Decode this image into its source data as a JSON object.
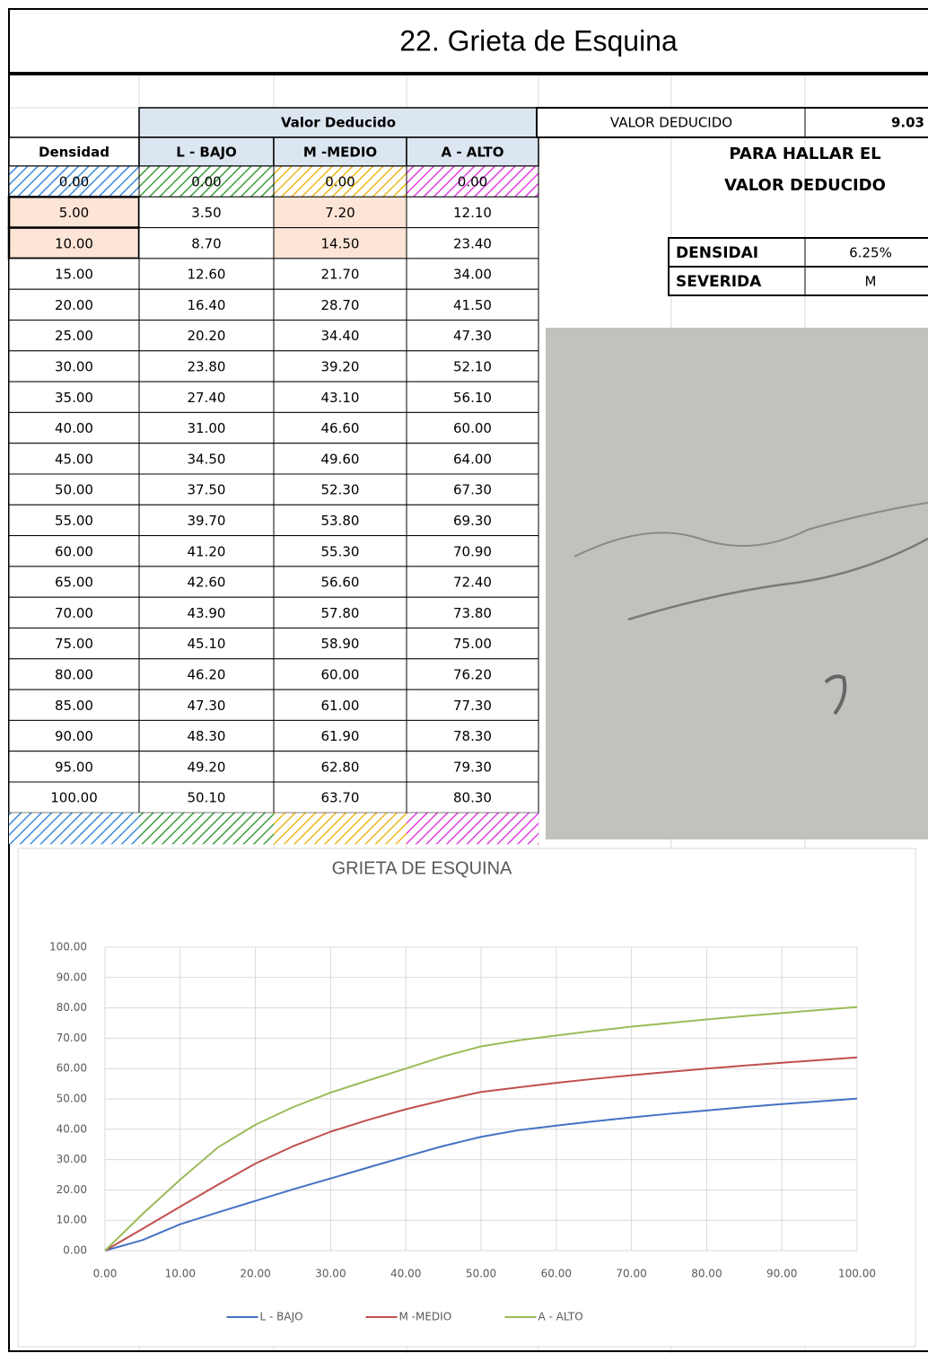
{
  "header": {
    "title": "22. Grieta de Esquina"
  },
  "table": {
    "group_header": "Valor Deducido",
    "columns": [
      "Densidad",
      "L - BAJO",
      "M -MEDIO",
      "A - ALTO"
    ],
    "rows": [
      [
        "0.00",
        "0.00",
        "0.00",
        "0.00"
      ],
      [
        "5.00",
        "3.50",
        "7.20",
        "12.10"
      ],
      [
        "10.00",
        "8.70",
        "14.50",
        "23.40"
      ],
      [
        "15.00",
        "12.60",
        "21.70",
        "34.00"
      ],
      [
        "20.00",
        "16.40",
        "28.70",
        "41.50"
      ],
      [
        "25.00",
        "20.20",
        "34.40",
        "47.30"
      ],
      [
        "30.00",
        "23.80",
        "39.20",
        "52.10"
      ],
      [
        "35.00",
        "27.40",
        "43.10",
        "56.10"
      ],
      [
        "40.00",
        "31.00",
        "46.60",
        "60.00"
      ],
      [
        "45.00",
        "34.50",
        "49.60",
        "64.00"
      ],
      [
        "50.00",
        "37.50",
        "52.30",
        "67.30"
      ],
      [
        "55.00",
        "39.70",
        "53.80",
        "69.30"
      ],
      [
        "60.00",
        "41.20",
        "55.30",
        "70.90"
      ],
      [
        "65.00",
        "42.60",
        "56.60",
        "72.40"
      ],
      [
        "70.00",
        "43.90",
        "57.80",
        "73.80"
      ],
      [
        "75.00",
        "45.10",
        "58.90",
        "75.00"
      ],
      [
        "80.00",
        "46.20",
        "60.00",
        "76.20"
      ],
      [
        "85.00",
        "47.30",
        "61.00",
        "77.30"
      ],
      [
        "90.00",
        "48.30",
        "61.90",
        "78.30"
      ],
      [
        "95.00",
        "49.20",
        "62.80",
        "79.30"
      ],
      [
        "100.00",
        "50.10",
        "63.70",
        "80.30"
      ]
    ]
  },
  "panel": {
    "result_label": "VALOR DEDUCIDO",
    "result_value": "9.03",
    "note": [
      "PARA HALLAR EL",
      "VALOR DEDUCIDO"
    ],
    "inputs": [
      {
        "label": "DENSIDAI",
        "value": "6.25%"
      },
      {
        "label": "SEVERIDA",
        "value": "M"
      }
    ]
  },
  "chart_data": {
    "type": "line",
    "title": "GRIETA DE ESQUINA",
    "x": [
      0,
      5,
      10,
      15,
      20,
      25,
      30,
      35,
      40,
      45,
      50,
      55,
      60,
      65,
      70,
      75,
      80,
      85,
      90,
      95,
      100
    ],
    "series": [
      {
        "name": "L - BAJO",
        "color": "#4472c4",
        "values": [
          0,
          3.5,
          8.7,
          12.6,
          16.4,
          20.2,
          23.8,
          27.4,
          31,
          34.5,
          37.5,
          39.7,
          41.2,
          42.6,
          43.9,
          45.1,
          46.2,
          47.3,
          48.3,
          49.2,
          50.1
        ]
      },
      {
        "name": "M -MEDIO",
        "color": "#c0504d",
        "values": [
          0,
          7.2,
          14.5,
          21.7,
          28.7,
          34.4,
          39.2,
          43.1,
          46.6,
          49.6,
          52.3,
          53.8,
          55.3,
          56.6,
          57.8,
          58.9,
          60,
          61,
          61.9,
          62.8,
          63.7
        ]
      },
      {
        "name": "A - ALTO",
        "color": "#9bbb59",
        "values": [
          0,
          12.1,
          23.4,
          34,
          41.5,
          47.3,
          52.1,
          56.1,
          60,
          64,
          67.3,
          69.3,
          70.9,
          72.4,
          73.8,
          75,
          76.2,
          77.3,
          78.3,
          79.3,
          80.3
        ]
      }
    ],
    "xlim": [
      0,
      100
    ],
    "ylim": [
      0,
      100
    ],
    "xticks": [
      {
        "value": 0,
        "label": "0.00"
      },
      {
        "value": 10,
        "label": "10.00"
      },
      {
        "value": 20,
        "label": "20.00"
      },
      {
        "value": 30,
        "label": "30.00"
      },
      {
        "value": 40,
        "label": "40.00"
      },
      {
        "value": 50,
        "label": "50.00"
      },
      {
        "value": 60,
        "label": "60.00"
      },
      {
        "value": 70,
        "label": "70.00"
      },
      {
        "value": 80,
        "label": "80.00"
      },
      {
        "value": 90,
        "label": "90.00"
      },
      {
        "value": 100,
        "label": "100.00"
      }
    ],
    "yticks": [
      {
        "value": 0,
        "label": "0.00"
      },
      {
        "value": 10,
        "label": "10.00"
      },
      {
        "value": 20,
        "label": "20.00"
      },
      {
        "value": 30,
        "label": "30.00"
      },
      {
        "value": 40,
        "label": "40.00"
      },
      {
        "value": 50,
        "label": "50.00"
      },
      {
        "value": 60,
        "label": "60.00"
      },
      {
        "value": 70,
        "label": "70.00"
      },
      {
        "value": 80,
        "label": "80.00"
      },
      {
        "value": 90,
        "label": "90.00"
      },
      {
        "value": 100,
        "label": "100.00"
      }
    ],
    "grid": true,
    "legend": "bottom"
  }
}
